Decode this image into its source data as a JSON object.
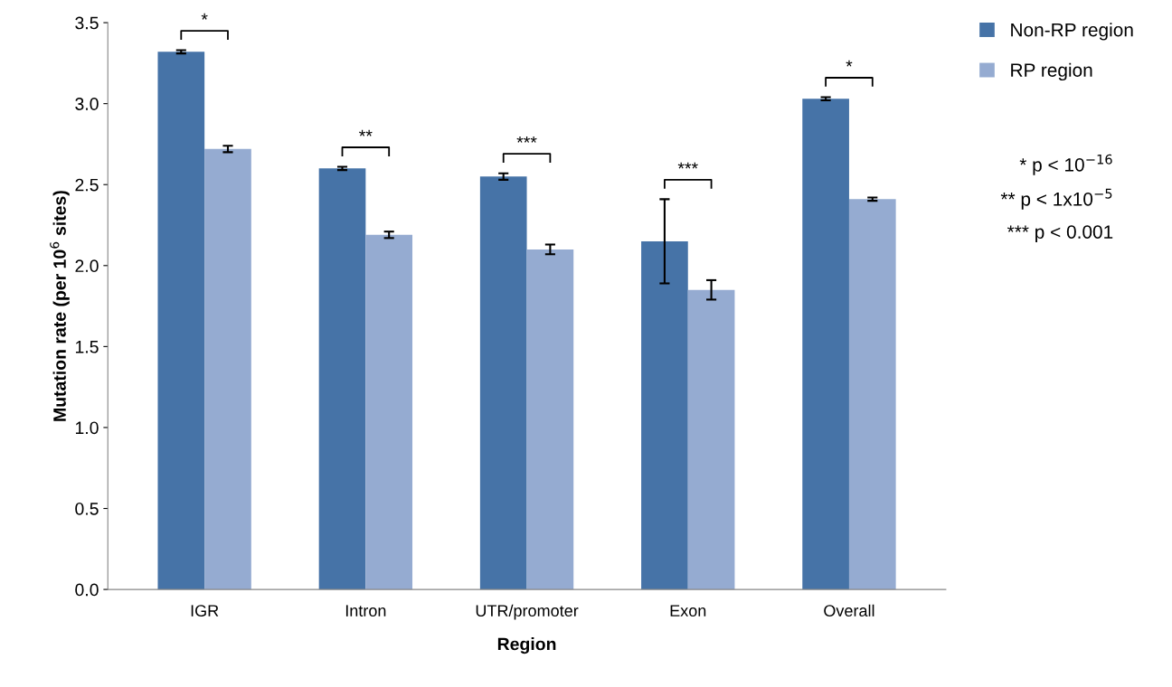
{
  "chart_data": {
    "type": "bar",
    "xlabel": "Region",
    "ylabel": "Mutation rate (per 10$^{6}$ sites)",
    "categories": [
      "IGR",
      "Intron",
      "UTR/promoter",
      "Exon",
      "Overall"
    ],
    "series": [
      {
        "name": "Non-RP region",
        "color": "#4673a7",
        "values": [
          3.32,
          2.6,
          2.55,
          2.15,
          3.03
        ],
        "errors": [
          0.01,
          0.01,
          0.02,
          0.26,
          0.01
        ]
      },
      {
        "name": "RP region",
        "color": "#95abd1",
        "values": [
          2.72,
          2.19,
          2.1,
          1.85,
          2.41
        ],
        "errors": [
          0.02,
          0.02,
          0.03,
          0.06,
          0.01
        ]
      }
    ],
    "ylim": [
      0,
      3.5
    ],
    "yticks": [
      {
        "value": 0,
        "label": "0.0"
      },
      {
        "value": 0.5,
        "label": "0.5"
      },
      {
        "value": 1,
        "label": "1.0"
      },
      {
        "value": 1.5,
        "label": "1.5"
      },
      {
        "value": 2,
        "label": "2.0"
      },
      {
        "value": 2.5,
        "label": "2.5"
      },
      {
        "value": 3,
        "label": "3.0"
      },
      {
        "value": 3.5,
        "label": "3.5"
      }
    ],
    "grid": false,
    "legend": "top right",
    "annotations": [
      "*",
      "**",
      "***",
      "***",
      "*",
      "* p < 10$^{−16}$",
      "** p < 1x10$^{−5}$",
      "*** p < 0.001"
    ]
  }
}
